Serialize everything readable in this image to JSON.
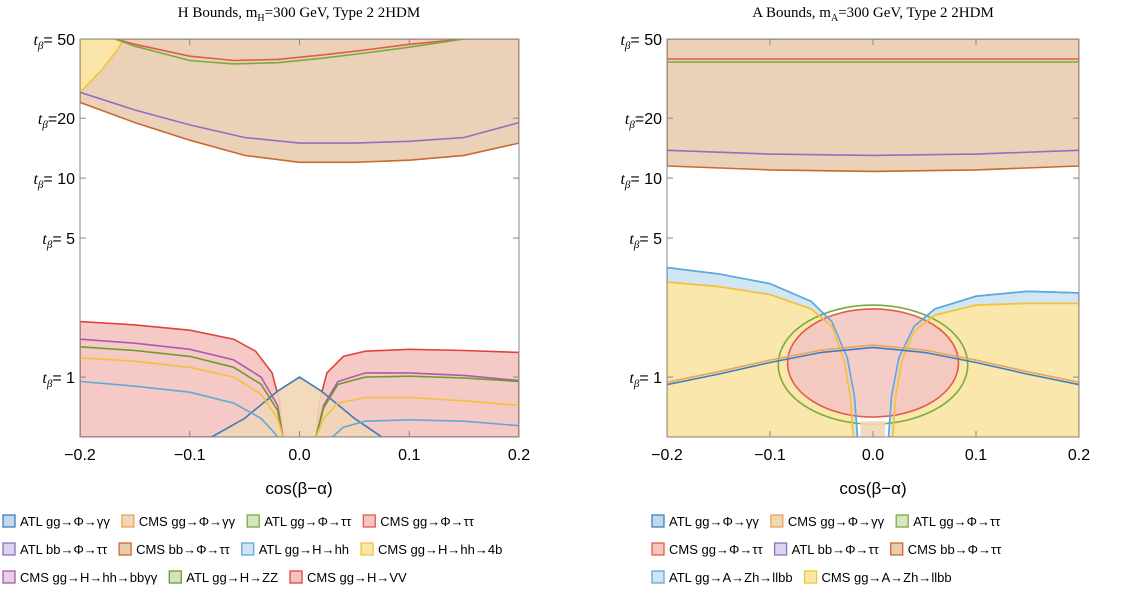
{
  "chart_data": [
    {
      "type": "area",
      "title_parts": {
        "pre": "H Bounds, m",
        "sub": "H",
        "post": "=300 GeV, Type 2 2HDM"
      },
      "xlabel": "cos(β−α)",
      "xlim": [
        -0.2,
        0.2
      ],
      "ylim": [
        0.5,
        50
      ],
      "yscale": "log",
      "xticks": [
        "−0.2",
        "−0.1",
        "0.0",
        "0.1",
        "0.2"
      ],
      "yticks": [
        {
          "value": 50,
          "label": "= 50"
        },
        {
          "value": 20,
          "label": "=20"
        },
        {
          "value": 10,
          "label": "= 10"
        },
        {
          "value": 5,
          "label": "= 5"
        },
        {
          "value": 1,
          "label": "= 1"
        }
      ],
      "ytick_symbol": "t",
      "ytick_sub": "β",
      "series": [
        {
          "name": "ATL gg→Φ→γγ",
          "stroke": "#3a7fc0",
          "fill": "#c4d8ec"
        },
        {
          "name": "CMS gg→Φ→γγ",
          "stroke": "#e8a45a",
          "fill": "#f2d6b6"
        },
        {
          "name": "ATL gg→Φ→ττ",
          "stroke": "#7aab3c",
          "fill": "#d7e6c1"
        },
        {
          "name": "CMS gg→Φ→ττ",
          "stroke": "#e45a4a",
          "fill": "#f3c6c2"
        },
        {
          "name": "ATL bb→Φ→ττ",
          "stroke": "#8f6fc2",
          "fill": "#ddd3ee"
        },
        {
          "name": "CMS bb→Φ→ττ",
          "stroke": "#c9692e",
          "fill": "#e8ccb0"
        },
        {
          "name": "ATL gg→H→hh",
          "stroke": "#5fa9da",
          "fill": "#cfe5f4"
        },
        {
          "name": "CMS gg→H→hh→4b",
          "stroke": "#f4c23a",
          "fill": "#fbe7a6"
        },
        {
          "name": "CMS gg→H→hh→bbγγ",
          "stroke": "#ad5ba6",
          "fill": "#e9cfe6"
        },
        {
          "name": "ATL gg→H→ZZ",
          "stroke": "#6f9a2e",
          "fill": "#d5e3bd"
        },
        {
          "name": "CMS gg→H→VV",
          "stroke": "#e0443c",
          "fill": "#f3c3c0"
        }
      ],
      "curves": {
        "bb_region_bottom": {
          "x": [
            -0.2,
            -0.15,
            -0.1,
            -0.05,
            0.0,
            0.05,
            0.1,
            0.15,
            0.2
          ],
          "y": [
            24,
            19,
            15.5,
            13,
            12,
            12,
            12.3,
            13,
            15
          ]
        },
        "atl_bb_line": {
          "x": [
            -0.2,
            -0.15,
            -0.1,
            -0.05,
            0.0,
            0.05,
            0.1,
            0.15,
            0.2
          ],
          "y": [
            27,
            22,
            18.5,
            16,
            15,
            15,
            15.3,
            16,
            19
          ]
        },
        "atl_gg_tautau": {
          "x": [
            -0.168,
            -0.15,
            -0.1,
            -0.06,
            -0.02,
            0.02,
            0.06,
            0.1,
            0.15
          ],
          "y": [
            50,
            46,
            39,
            37.5,
            38,
            40,
            42.5,
            45.5,
            50
          ]
        },
        "cms_gg_tautau": {
          "x": [
            -0.168,
            -0.15,
            -0.1,
            -0.06,
            -0.02,
            0.02,
            0.06,
            0.1,
            0.15
          ],
          "y": [
            50,
            47,
            41,
            39,
            39.5,
            41.5,
            44,
            47,
            50
          ]
        },
        "cms_4b_top": {
          "x": [
            -0.2,
            -0.18,
            -0.166,
            -0.16
          ],
          "y": [
            27,
            35,
            44,
            50
          ]
        },
        "cms_vv_left": {
          "x": [
            -0.2,
            -0.15,
            -0.1,
            -0.06,
            -0.04,
            -0.025,
            -0.018,
            -0.015
          ],
          "y": [
            1.9,
            1.83,
            1.72,
            1.55,
            1.35,
            1.05,
            0.75,
            0.5
          ]
        },
        "cms_vv_right": {
          "x": [
            0.015,
            0.018,
            0.025,
            0.04,
            0.06,
            0.1,
            0.15,
            0.2
          ],
          "y": [
            0.5,
            0.75,
            1.05,
            1.27,
            1.35,
            1.38,
            1.36,
            1.33
          ]
        },
        "bbgg_left": {
          "x": [
            -0.2,
            -0.15,
            -0.1,
            -0.06,
            -0.035,
            -0.02,
            -0.015
          ],
          "y": [
            1.55,
            1.48,
            1.38,
            1.22,
            1.0,
            0.72,
            0.5
          ]
        },
        "bbgg_right": {
          "x": [
            0.015,
            0.022,
            0.035,
            0.06,
            0.1,
            0.15,
            0.2
          ],
          "y": [
            0.5,
            0.72,
            0.95,
            1.05,
            1.05,
            1.02,
            0.96
          ]
        },
        "zz_left": {
          "x": [
            -0.2,
            -0.15,
            -0.1,
            -0.06,
            -0.035,
            -0.02,
            -0.015
          ],
          "y": [
            1.42,
            1.36,
            1.27,
            1.12,
            0.92,
            0.68,
            0.5
          ]
        },
        "zz_right": {
          "x": [
            0.015,
            0.022,
            0.035,
            0.06,
            0.1,
            0.15,
            0.2
          ],
          "y": [
            0.5,
            0.7,
            0.92,
            1.0,
            1.01,
            0.99,
            0.95
          ]
        },
        "fourb_left": {
          "x": [
            -0.2,
            -0.15,
            -0.1,
            -0.06,
            -0.035,
            -0.02,
            -0.015
          ],
          "y": [
            1.25,
            1.2,
            1.12,
            1.0,
            0.82,
            0.62,
            0.5
          ]
        },
        "fourb_right": {
          "x": [
            0.015,
            0.022,
            0.035,
            0.06,
            0.1,
            0.15,
            0.2
          ],
          "y": [
            0.5,
            0.62,
            0.74,
            0.79,
            0.79,
            0.76,
            0.72
          ]
        },
        "hh_left": {
          "x": [
            -0.2,
            -0.15,
            -0.1,
            -0.06,
            -0.035,
            -0.025,
            -0.02
          ],
          "y": [
            0.95,
            0.9,
            0.84,
            0.74,
            0.62,
            0.54,
            0.5
          ]
        },
        "hh_right": {
          "x": [
            0.03,
            0.04,
            0.06,
            0.1,
            0.15,
            0.2
          ],
          "y": [
            0.5,
            0.56,
            0.6,
            0.61,
            0.6,
            0.57
          ]
        },
        "gamma_peak": {
          "x": [
            -0.08,
            -0.05,
            -0.02,
            0.0,
            0.02,
            0.05,
            0.075
          ],
          "y": [
            0.5,
            0.62,
            0.85,
            1.0,
            0.85,
            0.62,
            0.5
          ]
        }
      }
    },
    {
      "type": "area",
      "title_parts": {
        "pre": "A Bounds, m",
        "sub": "A",
        "post": "=300 GeV, Type 2 2HDM"
      },
      "xlabel": "cos(β−α)",
      "xlim": [
        -0.2,
        0.2
      ],
      "ylim": [
        0.5,
        50
      ],
      "yscale": "log",
      "xticks": [
        "−0.2",
        "−0.1",
        "0.0",
        "0.1",
        "0.2"
      ],
      "yticks": [
        {
          "value": 50,
          "label": "= 50"
        },
        {
          "value": 20,
          "label": "=20"
        },
        {
          "value": 10,
          "label": "= 10"
        },
        {
          "value": 5,
          "label": "= 5"
        },
        {
          "value": 1,
          "label": "= 1"
        }
      ],
      "ytick_symbol": "t",
      "ytick_sub": "β",
      "series": [
        {
          "name": "ATL gg→Φ→γγ",
          "stroke": "#3a7fc0",
          "fill": "#c4d8ec"
        },
        {
          "name": "CMS gg→Φ→γγ",
          "stroke": "#e8a45a",
          "fill": "#f2d6b6"
        },
        {
          "name": "ATL gg→Φ→ττ",
          "stroke": "#7aab3c",
          "fill": "#d7e6c1"
        },
        {
          "name": "CMS gg→Φ→ττ",
          "stroke": "#e45a4a",
          "fill": "#f3c6c2"
        },
        {
          "name": "ATL bb→Φ→ττ",
          "stroke": "#8f6fc2",
          "fill": "#ddd3ee"
        },
        {
          "name": "CMS bb→Φ→ττ",
          "stroke": "#c9692e",
          "fill": "#e8ccb0"
        },
        {
          "name": "ATL gg→A→Zh→llbb",
          "stroke": "#5fa9da",
          "fill": "#cfe5f4"
        },
        {
          "name": "CMS gg→A→Zh→llbb",
          "stroke": "#f4c23a",
          "fill": "#fbe7a6"
        }
      ],
      "curves": {
        "bb_region_bottom": {
          "x": [
            -0.2,
            -0.1,
            0.0,
            0.1,
            0.2
          ],
          "y": [
            11.5,
            11.0,
            10.8,
            11.0,
            11.5
          ]
        },
        "atl_bb_line": {
          "x": [
            -0.2,
            -0.1,
            0.0,
            0.1,
            0.2
          ],
          "y": [
            13.8,
            13.2,
            13.0,
            13.2,
            13.8
          ]
        },
        "gg_tautau_top": {
          "x": [
            -0.2,
            0.2
          ],
          "y": [
            39,
            39
          ]
        },
        "zh_cms_left": {
          "x": [
            -0.2,
            -0.15,
            -0.1,
            -0.06,
            -0.04,
            -0.028,
            -0.022,
            -0.019
          ],
          "y": [
            3.0,
            2.85,
            2.6,
            2.2,
            1.8,
            1.2,
            0.8,
            0.5
          ]
        },
        "zh_cms_right": {
          "x": [
            0.019,
            0.022,
            0.028,
            0.04,
            0.06,
            0.1,
            0.15,
            0.2
          ],
          "y": [
            0.5,
            0.8,
            1.2,
            1.7,
            2.05,
            2.3,
            2.35,
            2.35
          ]
        },
        "zh_atl_left": {
          "x": [
            -0.2,
            -0.15,
            -0.1,
            -0.06,
            -0.04,
            -0.025,
            -0.018,
            -0.015
          ],
          "y": [
            3.55,
            3.3,
            2.95,
            2.4,
            1.9,
            1.25,
            0.8,
            0.5
          ]
        },
        "zh_atl_right": {
          "x": [
            0.015,
            0.018,
            0.025,
            0.04,
            0.06,
            0.1,
            0.15,
            0.2
          ],
          "y": [
            0.5,
            0.8,
            1.25,
            1.8,
            2.2,
            2.55,
            2.7,
            2.65
          ]
        },
        "gamma_curve": {
          "x": [
            -0.2,
            -0.15,
            -0.1,
            -0.05,
            0.0,
            0.05,
            0.1,
            0.15,
            0.2
          ],
          "y": [
            0.93,
            1.05,
            1.2,
            1.35,
            1.43,
            1.35,
            1.2,
            1.05,
            0.93
          ]
        },
        "ellipse_red": {
          "cx": 0.0,
          "cy_log": 1.0,
          "rx": 0.083,
          "y_top": 2.2,
          "y_bottom": 0.63
        },
        "ellipse_green": {
          "cx": 0.0,
          "cy_log": 1.0,
          "rx": 0.092,
          "y_top": 2.3,
          "y_bottom": 0.58
        }
      }
    }
  ]
}
